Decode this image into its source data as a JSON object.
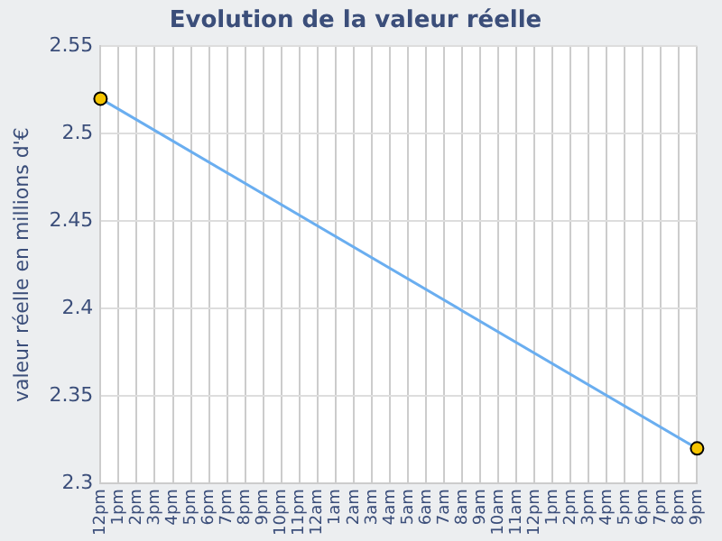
{
  "chart_data": {
    "type": "line",
    "title": "Evolution de la valeur réelle",
    "ylabel": "valeur réelle en millions d'€",
    "categories": [
      "12pm",
      "1pm",
      "2pm",
      "3pm",
      "4pm",
      "5pm",
      "6pm",
      "7pm",
      "8pm",
      "9pm",
      "10pm",
      "11pm",
      "12am",
      "1am",
      "2am",
      "3am",
      "4am",
      "5am",
      "6am",
      "7am",
      "8am",
      "9am",
      "10am",
      "11am",
      "12pm",
      "1pm",
      "2pm",
      "3pm",
      "4pm",
      "5pm",
      "6pm",
      "7pm",
      "8pm",
      "9pm"
    ],
    "series": [
      {
        "color": "#6aaef0",
        "values": [
          2.52,
          null,
          null,
          null,
          null,
          null,
          null,
          null,
          null,
          null,
          null,
          null,
          null,
          null,
          null,
          null,
          null,
          null,
          null,
          null,
          null,
          null,
          null,
          null,
          null,
          null,
          null,
          null,
          null,
          null,
          null,
          null,
          null,
          2.32
        ]
      }
    ],
    "ylim": [
      2.3,
      2.55
    ],
    "yticks": [
      2.3,
      2.35,
      2.4,
      2.45,
      2.5,
      2.55
    ],
    "grid": true,
    "marker": "circle"
  }
}
